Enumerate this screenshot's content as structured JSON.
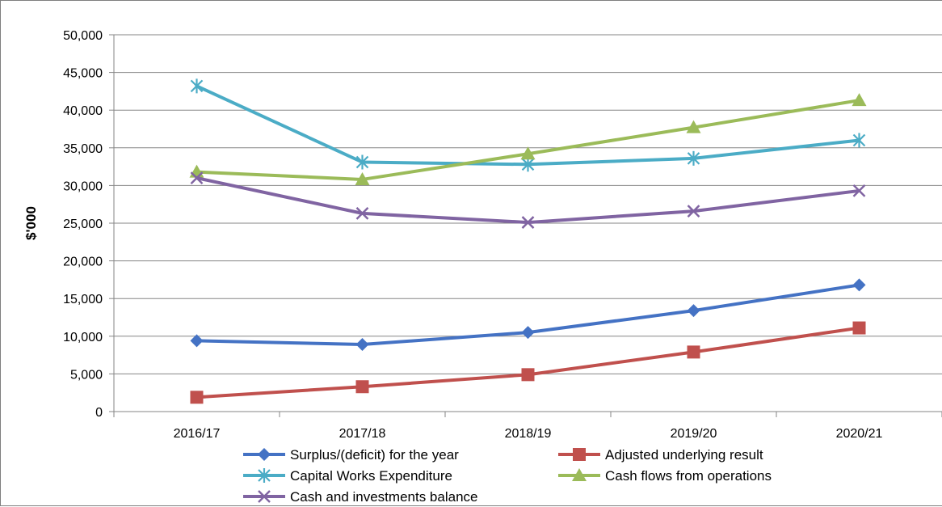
{
  "chart_data": {
    "type": "line",
    "title": "",
    "xlabel": "",
    "ylabel": "$'000",
    "ylim": [
      0,
      50000
    ],
    "yticks": [
      0,
      5000,
      10000,
      15000,
      20000,
      25000,
      30000,
      35000,
      40000,
      45000,
      50000
    ],
    "ytick_labels": [
      "0",
      "5,000",
      "10,000",
      "15,000",
      "20,000",
      "25,000",
      "30,000",
      "35,000",
      "40,000",
      "45,000",
      "50,000"
    ],
    "grid": true,
    "legend_position": "bottom",
    "categories": [
      "2016/17",
      "2017/18",
      "2018/19",
      "2019/20",
      "2020/21"
    ],
    "series": [
      {
        "name": "Surplus/(deficit) for the year",
        "color": "#4472C4",
        "marker": "diamond",
        "values": [
          9400,
          8900,
          10500,
          13400,
          16800
        ]
      },
      {
        "name": "Adjusted underlying result",
        "color": "#C0504D",
        "marker": "square",
        "values": [
          1900,
          3300,
          4900,
          7900,
          11100
        ]
      },
      {
        "name": "Capital Works Expenditure",
        "color": "#4BACC6",
        "marker": "star",
        "values": [
          43200,
          33100,
          32800,
          33600,
          36000
        ]
      },
      {
        "name": "Cash flows from operations",
        "color": "#9BBB59",
        "marker": "triangle",
        "values": [
          31800,
          30800,
          34200,
          37700,
          41300
        ]
      },
      {
        "name": "Cash and investments balance",
        "color": "#8064A2",
        "marker": "x",
        "values": [
          31000,
          26300,
          25100,
          26600,
          29300
        ]
      }
    ]
  }
}
